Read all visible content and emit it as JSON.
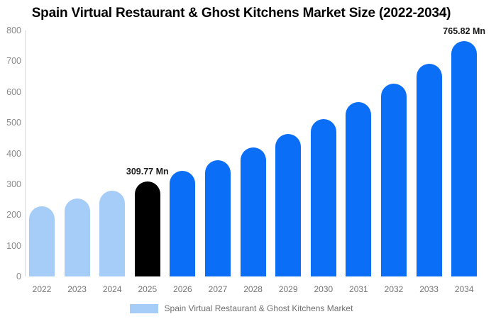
{
  "title": "Spain Virtual Restaurant & Ghost Kitchens Market Size (2022-2034)",
  "legend": {
    "label": "Spain Virtual Restaurant & Ghost Kitchens Market",
    "swatch_color": "#a5cdf7"
  },
  "colors": {
    "past_bar": "#a5cdf7",
    "current_bar": "#000000",
    "forecast_bar": "#0b6ef7",
    "axis_text": "#8a8a8a",
    "x_tick_text": "#757575",
    "value_label_text": "#1a1a1a",
    "axis_line": "#d9d9d9",
    "background": "#ffffff"
  },
  "chart_data": {
    "type": "bar",
    "title": "Spain Virtual Restaurant & Ghost Kitchens Market Size (2022-2034)",
    "unit": "Mn",
    "categories": [
      "2022",
      "2023",
      "2024",
      "2025",
      "2026",
      "2027",
      "2028",
      "2029",
      "2030",
      "2031",
      "2032",
      "2033",
      "2034"
    ],
    "values": [
      229.1,
      253.3,
      280.1,
      309.77,
      342.5,
      378.8,
      418.8,
      463.1,
      512.1,
      566.3,
      626.2,
      692.4,
      765.82
    ],
    "bar_roles": [
      "past",
      "past",
      "past",
      "current",
      "forecast",
      "forecast",
      "forecast",
      "forecast",
      "forecast",
      "forecast",
      "forecast",
      "forecast",
      "forecast"
    ],
    "annotations": [
      {
        "index": 3,
        "text": "309.77 Mn"
      },
      {
        "index": 12,
        "text": "765.82 Mn"
      }
    ],
    "xlabel": "",
    "ylabel": "",
    "ylim": [
      0,
      800
    ],
    "yticks": [
      0,
      100,
      200,
      300,
      400,
      500,
      600,
      700,
      800
    ],
    "grid": false,
    "legend_entries": [
      "Spain Virtual Restaurant & Ghost Kitchens Market"
    ],
    "legend_position": "bottom"
  }
}
